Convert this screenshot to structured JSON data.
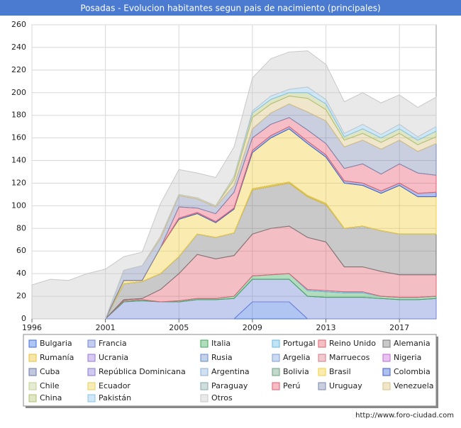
{
  "chart_data": {
    "type": "stacked-area",
    "title": "Posadas - Evolucion habitantes segun pais de nacimiento (principales)",
    "source": "http://www.foro-ciudad.com",
    "categories": [
      "1996",
      null,
      null,
      null,
      "2001",
      null,
      null,
      null,
      "2005",
      null,
      null,
      null,
      "2009",
      null,
      null,
      null,
      "2013",
      null,
      null,
      null,
      "2017",
      null,
      null
    ],
    "ylim": [
      0,
      260
    ],
    "yticks": [
      0,
      20,
      40,
      60,
      80,
      100,
      120,
      140,
      160,
      180,
      200,
      220,
      240,
      260
    ],
    "grid": true,
    "legend": "bottom",
    "series": [
      {
        "name": "Bulgaria",
        "color": "#3d6fe0",
        "values": [
          0,
          0,
          0,
          0,
          0,
          0,
          0,
          0,
          0,
          0,
          0,
          0,
          15,
          15,
          15,
          0,
          0,
          0,
          0,
          0,
          0,
          0,
          0
        ]
      },
      {
        "name": "Francia",
        "color": "#6f82d8",
        "values": [
          0,
          0,
          0,
          0,
          0,
          15,
          16,
          15,
          15,
          17,
          17,
          18,
          20,
          20,
          20,
          20,
          19,
          19,
          19,
          18,
          17,
          17,
          18
        ]
      },
      {
        "name": "Italia",
        "color": "#3ea85a",
        "values": [
          0,
          0,
          0,
          0,
          0,
          1,
          1,
          0,
          1,
          1,
          1,
          2,
          3,
          4,
          5,
          5,
          5,
          4,
          4,
          2,
          2,
          2,
          2
        ]
      },
      {
        "name": "Portugal",
        "color": "#66b8e6",
        "values": [
          0,
          0,
          0,
          0,
          0,
          0,
          0,
          0,
          0,
          0,
          0,
          0,
          0,
          0,
          0,
          1,
          1,
          1,
          1,
          0,
          0,
          0,
          0
        ]
      },
      {
        "name": "Reino Unido",
        "color": "#e0606e",
        "values": [
          0,
          0,
          0,
          0,
          0,
          1,
          1,
          11,
          24,
          39,
          35,
          36,
          37,
          41,
          42,
          46,
          43,
          22,
          22,
          22,
          20,
          20,
          19
        ]
      },
      {
        "name": "Alemania",
        "color": "#777777",
        "values": [
          0,
          0,
          0,
          0,
          0,
          14,
          15,
          14,
          15,
          18,
          19,
          20,
          39,
          37,
          38,
          36,
          33,
          34,
          36,
          36,
          36,
          36,
          36
        ]
      },
      {
        "name": "Rumanía",
        "color": "#e6c030",
        "values": [
          0,
          0,
          0,
          0,
          0,
          0,
          0,
          0,
          0,
          0,
          0,
          0,
          1,
          1,
          1,
          1,
          1,
          0,
          0,
          0,
          0,
          0,
          0
        ]
      },
      {
        "name": "Ucrania",
        "color": "#9a78d8",
        "values": [
          0,
          0,
          0,
          0,
          0,
          0,
          0,
          0,
          0,
          0,
          0,
          0,
          0,
          0,
          0,
          0,
          0,
          0,
          0,
          0,
          0,
          0,
          0
        ]
      },
      {
        "name": "Rusia",
        "color": "#6a8ccc",
        "values": [
          0,
          0,
          0,
          0,
          0,
          0,
          0,
          0,
          0,
          0,
          0,
          0,
          0,
          0,
          0,
          0,
          0,
          0,
          0,
          0,
          0,
          0,
          0
        ]
      },
      {
        "name": "Argelia",
        "color": "#7da0dc",
        "values": [
          0,
          0,
          0,
          0,
          0,
          0,
          0,
          0,
          0,
          0,
          0,
          0,
          0,
          0,
          0,
          0,
          0,
          0,
          0,
          0,
          0,
          0,
          0
        ]
      },
      {
        "name": "Marruecos",
        "color": "#d87a8a",
        "values": [
          0,
          0,
          0,
          0,
          0,
          0,
          0,
          0,
          0,
          0,
          0,
          0,
          0,
          0,
          0,
          0,
          0,
          0,
          0,
          0,
          0,
          0,
          0
        ]
      },
      {
        "name": "Nigeria",
        "color": "#c468d8",
        "values": [
          0,
          0,
          0,
          0,
          0,
          0,
          0,
          0,
          0,
          0,
          0,
          0,
          0,
          0,
          0,
          0,
          0,
          0,
          0,
          0,
          0,
          0,
          0
        ]
      },
      {
        "name": "Cuba",
        "color": "#6878a8",
        "values": [
          0,
          0,
          0,
          0,
          0,
          0,
          0,
          0,
          0,
          0,
          0,
          0,
          0,
          0,
          0,
          0,
          0,
          0,
          0,
          0,
          0,
          0,
          0
        ]
      },
      {
        "name": "República Dominicana",
        "color": "#8c7ad8",
        "values": [
          0,
          0,
          0,
          0,
          0,
          0,
          0,
          0,
          0,
          0,
          0,
          0,
          0,
          0,
          0,
          0,
          0,
          0,
          0,
          0,
          0,
          0,
          0
        ]
      },
      {
        "name": "Argentina",
        "color": "#8cb0d8",
        "values": [
          0,
          0,
          0,
          0,
          0,
          0,
          0,
          0,
          0,
          0,
          0,
          0,
          0,
          0,
          0,
          0,
          0,
          0,
          0,
          0,
          0,
          0,
          0
        ]
      },
      {
        "name": "Bolivia",
        "color": "#6aa07e",
        "values": [
          0,
          0,
          0,
          0,
          0,
          0,
          0,
          0,
          0,
          0,
          0,
          0,
          0,
          0,
          0,
          0,
          0,
          0,
          0,
          0,
          0,
          0,
          0
        ]
      },
      {
        "name": "Brasil",
        "color": "#f2cf3a",
        "values": [
          0,
          0,
          0,
          0,
          0,
          3,
          1,
          23,
          33,
          18,
          13,
          21,
          32,
          42,
          47,
          46,
          41,
          40,
          36,
          33,
          43,
          33,
          33
        ]
      },
      {
        "name": "Colombia",
        "color": "#3a5ed0",
        "values": [
          0,
          0,
          0,
          0,
          0,
          0,
          0,
          0,
          1,
          1,
          1,
          1,
          2,
          2,
          2,
          2,
          2,
          2,
          2,
          2,
          2,
          3,
          4
        ]
      },
      {
        "name": "Chile",
        "color": "#c0d090",
        "values": [
          0,
          0,
          0,
          0,
          0,
          0,
          0,
          0,
          0,
          0,
          0,
          0,
          0,
          0,
          0,
          0,
          0,
          0,
          0,
          0,
          0,
          0,
          0
        ]
      },
      {
        "name": "Ecuador",
        "color": "#e8d050",
        "values": [
          0,
          0,
          0,
          0,
          0,
          0,
          0,
          0,
          0,
          0,
          0,
          0,
          0,
          0,
          0,
          0,
          0,
          0,
          0,
          0,
          0,
          0,
          0
        ]
      },
      {
        "name": "Paraguay",
        "color": "#88aaaa",
        "values": [
          0,
          0,
          0,
          0,
          0,
          0,
          0,
          0,
          0,
          0,
          0,
          0,
          0,
          0,
          0,
          0,
          0,
          0,
          0,
          0,
          0,
          0,
          0
        ]
      },
      {
        "name": "Perú",
        "color": "#e85a70",
        "values": [
          0,
          0,
          0,
          0,
          0,
          0,
          0,
          0,
          10,
          4,
          7,
          14,
          11,
          10,
          8,
          10,
          10,
          11,
          17,
          15,
          17,
          18,
          15
        ]
      },
      {
        "name": "Uruguay",
        "color": "#7888b0",
        "values": [
          0,
          0,
          0,
          0,
          0,
          9,
          13,
          8,
          10,
          8,
          6,
          6,
          8,
          10,
          12,
          16,
          20,
          19,
          21,
          22,
          21,
          19,
          28
        ]
      },
      {
        "name": "Venezuela",
        "color": "#d8c080",
        "values": [
          0,
          0,
          0,
          0,
          0,
          0,
          0,
          2,
          1,
          1,
          1,
          5,
          10,
          8,
          7,
          12,
          10,
          6,
          6,
          6,
          6,
          6,
          6
        ]
      },
      {
        "name": "China",
        "color": "#b0c070",
        "values": [
          0,
          0,
          0,
          0,
          0,
          0,
          0,
          0,
          0,
          0,
          0,
          3,
          4,
          4,
          3,
          5,
          5,
          3,
          4,
          4,
          4,
          4,
          5
        ]
      },
      {
        "name": "Pakistán",
        "color": "#88c4ea",
        "values": [
          0,
          0,
          0,
          0,
          0,
          0,
          0,
          0,
          0,
          0,
          0,
          0,
          2,
          3,
          3,
          5,
          4,
          3,
          4,
          3,
          4,
          3,
          4
        ]
      },
      {
        "name": "Otros",
        "color": "#c8c8c8",
        "values": [
          30,
          35,
          34,
          40,
          44,
          12,
          12,
          29,
          22,
          22,
          25,
          26,
          29,
          33,
          33,
          32,
          31,
          28,
          28,
          28,
          26,
          26,
          26
        ]
      }
    ]
  }
}
